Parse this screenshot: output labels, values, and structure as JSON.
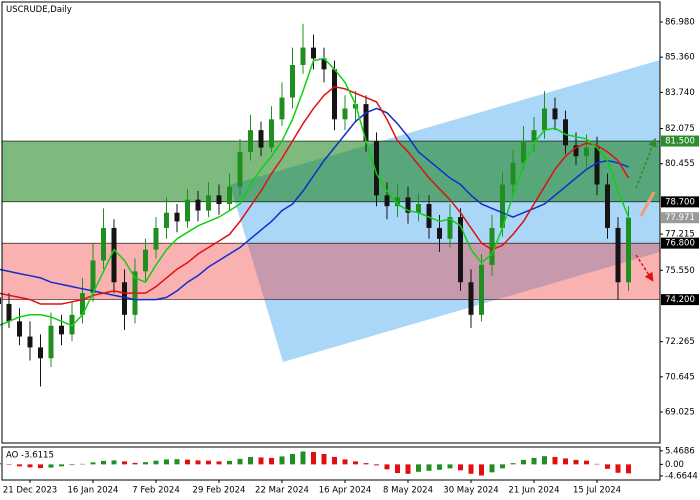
{
  "chart_data": [
    {
      "type": "candlestick",
      "title": "USCRUDE,Daily",
      "categories": [
        null,
        null,
        null,
        "21 Dec 2023",
        null,
        null,
        null,
        null,
        null,
        "16 Jan 2024",
        null,
        null,
        null,
        null,
        null,
        "7 Feb 2024",
        null,
        null,
        null,
        null,
        null,
        "29 Feb 2024",
        null,
        null,
        null,
        null,
        null,
        "22 Mar 2024",
        null,
        null,
        null,
        null,
        null,
        "16 Apr 2024",
        null,
        null,
        null,
        null,
        null,
        "8 May 2024",
        null,
        null,
        null,
        null,
        null,
        "30 May 2024",
        null,
        null,
        null,
        null,
        null,
        "21 Jun 2024",
        null,
        null,
        null,
        null,
        null,
        "15 Jul 2024",
        null,
        null,
        null
      ],
      "open": [
        74.3,
        74.0,
        73.2,
        72.5,
        72.0,
        71.5,
        73.0,
        72.6,
        73.5,
        74.5,
        76.0,
        77.5,
        75.0,
        73.5,
        75.5,
        76.5,
        77.5,
        78.2,
        77.8,
        78.8,
        78.3,
        79.0,
        78.6,
        79.4,
        81.0,
        82.0,
        81.2,
        82.5,
        83.5,
        85.0,
        85.8,
        85.3,
        84.8,
        82.5,
        83.0,
        83.2,
        81.5,
        79.0,
        78.5,
        78.9,
        78.2,
        78.6,
        77.5,
        77.0,
        78.0,
        75.0,
        73.5,
        75.8,
        77.5,
        79.5,
        80.5,
        81.5,
        82.0,
        83.0,
        82.5,
        81.3,
        80.8,
        81.2,
        79.5,
        77.5,
        75.0
      ],
      "high": [
        74.9,
        74.5,
        73.8,
        73.2,
        72.6,
        73.6,
        73.5,
        74.1,
        75.2,
        76.8,
        78.4,
        77.9,
        75.6,
        76.1,
        77.0,
        78.0,
        78.9,
        78.6,
        79.3,
        79.2,
        79.6,
        79.5,
        80.0,
        81.6,
        82.7,
        82.4,
        83.1,
        84.2,
        85.8,
        86.9,
        86.4,
        85.8,
        85.2,
        83.6,
        83.8,
        83.6,
        81.9,
        79.6,
        79.5,
        79.4,
        79.1,
        79.0,
        78.1,
        78.6,
        78.4,
        75.6,
        76.3,
        78.1,
        80.1,
        81.1,
        82.2,
        82.6,
        83.8,
        83.5,
        82.9,
        81.9,
        81.8,
        81.7,
        80.0,
        78.0,
        78.5
      ],
      "low": [
        73.6,
        72.9,
        72.1,
        71.4,
        70.2,
        71.1,
        72.1,
        72.3,
        73.1,
        74.1,
        75.6,
        74.5,
        72.8,
        73.1,
        75.0,
        76.1,
        77.0,
        77.3,
        77.5,
        77.8,
        78.0,
        78.1,
        78.3,
        79.0,
        80.6,
        80.8,
        81.0,
        82.2,
        83.0,
        84.6,
        84.8,
        84.2,
        82.0,
        82.0,
        82.4,
        81.0,
        78.5,
        77.9,
        78.0,
        77.7,
        77.8,
        77.0,
        76.4,
        76.6,
        74.6,
        72.9,
        73.2,
        75.3,
        77.1,
        79.0,
        80.2,
        81.0,
        81.6,
        82.0,
        80.9,
        80.4,
        80.3,
        79.0,
        77.0,
        74.2,
        74.6
      ],
      "close": [
        74.0,
        73.2,
        72.5,
        72.0,
        71.5,
        73.0,
        72.6,
        73.5,
        74.5,
        76.0,
        77.5,
        75.0,
        73.5,
        75.5,
        76.5,
        77.5,
        78.2,
        77.8,
        78.8,
        78.3,
        79.0,
        78.6,
        79.4,
        81.0,
        82.0,
        81.2,
        82.5,
        83.5,
        85.0,
        85.8,
        85.3,
        84.8,
        82.5,
        83.0,
        83.2,
        81.5,
        79.0,
        78.5,
        78.9,
        78.2,
        78.6,
        77.5,
        77.0,
        78.0,
        75.0,
        73.5,
        75.8,
        77.5,
        79.5,
        80.5,
        81.5,
        82.0,
        83.0,
        82.5,
        81.3,
        80.8,
        81.2,
        79.5,
        77.5,
        75.0,
        77.971
      ],
      "up_color": "#1f8f1f",
      "down_color": "#141414",
      "series": [
        {
          "color": "#1030c8",
          "values": [
            75.6,
            75.5,
            75.4,
            75.3,
            75.2,
            75.0,
            74.9,
            74.8,
            74.7,
            74.6,
            74.5,
            74.4,
            74.3,
            74.2,
            74.2,
            74.2,
            74.3,
            74.6,
            75.0,
            75.3,
            75.7,
            76.0,
            76.3,
            76.6,
            77.0,
            77.4,
            77.8,
            78.3,
            78.6,
            79.2,
            79.9,
            80.6,
            81.2,
            81.8,
            82.4,
            82.8,
            83.0,
            82.8,
            82.3,
            81.7,
            81.0,
            80.6,
            80.2,
            79.8,
            79.5,
            79.0,
            78.6,
            78.4,
            78.2,
            78.0,
            78.2,
            78.4,
            78.6,
            79.0,
            79.4,
            79.8,
            80.2,
            80.5,
            80.6,
            80.5,
            80.3
          ]
        },
        {
          "color": "#e01010",
          "values": [
            74.5,
            74.4,
            74.3,
            74.2,
            74.0,
            74.0,
            74.0,
            74.1,
            74.2,
            74.4,
            74.5,
            74.6,
            74.5,
            74.5,
            74.5,
            74.8,
            75.2,
            75.6,
            75.9,
            76.3,
            76.6,
            76.9,
            77.2,
            77.8,
            78.5,
            79.2,
            80.0,
            80.7,
            81.5,
            82.3,
            83.0,
            83.6,
            84.0,
            83.9,
            83.7,
            83.5,
            83.3,
            82.5,
            81.5,
            81.0,
            80.4,
            79.8,
            79.3,
            78.8,
            78.2,
            77.5,
            76.8,
            76.5,
            76.7,
            77.2,
            77.8,
            78.6,
            79.4,
            80.2,
            80.8,
            81.2,
            81.4,
            81.3,
            81.0,
            80.6,
            79.8
          ]
        },
        {
          "color": "#10d010",
          "values": [
            73.0,
            73.2,
            73.4,
            73.5,
            73.5,
            73.4,
            73.2,
            73.0,
            73.5,
            74.5,
            75.5,
            76.5,
            76.0,
            75.2,
            75.0,
            75.8,
            76.5,
            77.0,
            77.3,
            77.6,
            77.8,
            78.0,
            78.3,
            78.6,
            79.5,
            80.2,
            80.8,
            81.5,
            82.5,
            83.8,
            85.2,
            85.3,
            84.8,
            84.2,
            83.2,
            81.5,
            80.0,
            79.2,
            78.6,
            78.3,
            78.2,
            78.0,
            77.8,
            77.9,
            77.6,
            76.5,
            75.9,
            76.3,
            77.5,
            79.0,
            80.4,
            81.4,
            82.0,
            82.1,
            81.8,
            81.7,
            81.6,
            81.2,
            80.6,
            79.2,
            78.0
          ]
        }
      ],
      "zones": [
        {
          "top": 81.5,
          "top_label": "81.500",
          "bottom": 78.7,
          "bottom_label": "78.700",
          "color": "rgba(20,130,20,0.55)",
          "top_tag_color": "#2e8b2e",
          "bottom_tag_color": "#000000"
        },
        {
          "top": 76.8,
          "top_label": "76.800",
          "bottom": 74.2,
          "bottom_label": "74.200",
          "color": "rgba(240,70,70,0.42)",
          "top_tag_color": "#000000",
          "bottom_tag_color": "#000000"
        }
      ],
      "last_price": {
        "value": 77.971,
        "label": "77.971",
        "color": "#9a9a9a"
      },
      "ylim": [
        67.6,
        87.9
      ],
      "yticks": [
        {
          "value": 86.98,
          "label": "86.980"
        },
        {
          "value": 85.36,
          "label": "85.360"
        },
        {
          "value": 83.74,
          "label": "83.740"
        },
        82.075,
        80.455,
        77.215,
        {
          "value": 75.55,
          "label": "75.550"
        },
        72.265,
        70.645,
        69.025
      ]
    },
    {
      "type": "bar",
      "title": "AO -3.6115",
      "values": [
        0.5,
        -0.2,
        -0.8,
        -1.2,
        -1.5,
        -1.3,
        -0.8,
        -0.3,
        0.2,
        0.8,
        1.4,
        1.6,
        1.2,
        0.6,
        0.9,
        1.5,
        2.0,
        2.1,
        1.9,
        1.6,
        1.5,
        1.2,
        1.4,
        2.2,
        3.0,
        2.8,
        2.6,
        3.2,
        4.2,
        5.2,
        5.0,
        4.2,
        3.0,
        2.0,
        1.2,
        0.5,
        -0.4,
        -2.0,
        -3.5,
        -3.8,
        -3.0,
        -2.6,
        -2.2,
        -1.6,
        -2.4,
        -3.8,
        -4.5,
        -3.2,
        -1.6,
        0.5,
        1.8,
        2.6,
        3.3,
        3.0,
        2.4,
        1.8,
        1.5,
        0.2,
        -1.8,
        -3.4,
        -3.6115
      ],
      "up_color": "#1f8f1f",
      "down_color": "#e01010",
      "ylim": [
        -5.5,
        6.2
      ],
      "yticks": [
        5.4686,
        {
          "value": 0,
          "label": "0.00"
        },
        -4.6644
      ]
    }
  ]
}
